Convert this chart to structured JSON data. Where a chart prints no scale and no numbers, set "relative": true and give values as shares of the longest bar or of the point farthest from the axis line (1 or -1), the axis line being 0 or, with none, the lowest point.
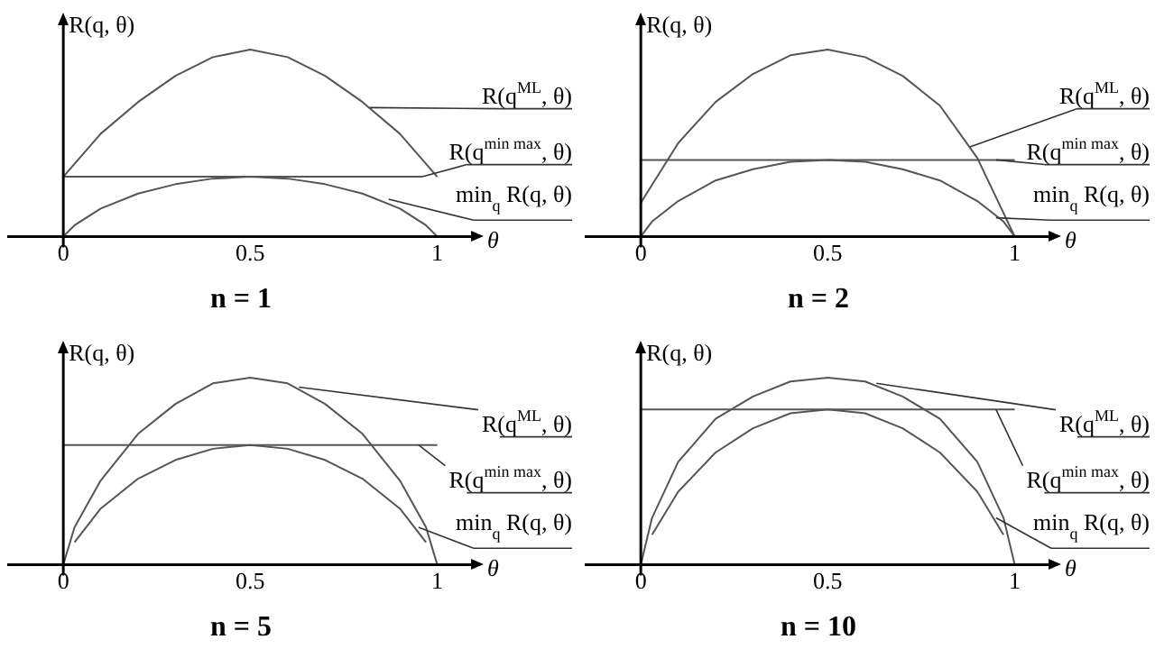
{
  "chart_data": [
    {
      "type": "line",
      "title": "n = 1",
      "xlabel": "θ",
      "ylabel": "R(q, θ)",
      "relative": true,
      "marker": "none",
      "xlim": [
        -0.15,
        1.1
      ],
      "xticks": [
        0,
        0.5,
        1
      ],
      "series": [
        {
          "color": "#555555",
          "x": [
            0,
            0.1,
            0.2,
            0.3,
            0.4,
            0.5,
            0.6,
            0.7,
            0.8,
            0.9,
            1
          ],
          "values": [
            0.32,
            0.55,
            0.72,
            0.86,
            0.96,
            1,
            0.96,
            0.86,
            0.72,
            0.55,
            0.32
          ]
        },
        {
          "color": "#555555",
          "x": [
            0,
            0.96
          ],
          "values": [
            0.32,
            0.32
          ]
        },
        {
          "color": "#555555",
          "x": [
            0,
            0.03,
            0.1,
            0.2,
            0.3,
            0.4,
            0.5,
            0.6,
            0.7,
            0.8,
            0.9,
            0.97,
            1
          ],
          "values": [
            0,
            0.06,
            0.15,
            0.23,
            0.28,
            0.31,
            0.32,
            0.31,
            0.28,
            0.23,
            0.15,
            0.06,
            0
          ]
        }
      ],
      "annotations": [
        {
          "text": "R(q$^{ML}$, θ)",
          "x": 0.82,
          "y": 0.69
        },
        {
          "text": "R(q$^{min max}$, θ)",
          "x": 0.96,
          "y": 0.32
        },
        {
          "text": "min$_{q}$ R(q, θ)",
          "x": 0.87,
          "y": 0.2
        }
      ]
    },
    {
      "type": "line",
      "title": "n = 2",
      "xlabel": "θ",
      "ylabel": "R(q, θ)",
      "relative": true,
      "marker": "none",
      "xlim": [
        -0.15,
        1.1
      ],
      "xticks": [
        0,
        0.5,
        1
      ],
      "series": [
        {
          "color": "#555555",
          "x": [
            0,
            0.1,
            0.2,
            0.3,
            0.4,
            0.5,
            0.6,
            0.7,
            0.8,
            0.9,
            1
          ],
          "values": [
            0.18,
            0.5,
            0.72,
            0.87,
            0.97,
            1,
            0.96,
            0.86,
            0.7,
            0.42,
            0
          ]
        },
        {
          "color": "#555555",
          "x": [
            0,
            1
          ],
          "values": [
            0.41,
            0.41
          ]
        },
        {
          "color": "#555555",
          "x": [
            0,
            0.03,
            0.1,
            0.2,
            0.3,
            0.4,
            0.5,
            0.6,
            0.7,
            0.8,
            0.9,
            0.97,
            1
          ],
          "values": [
            0,
            0.08,
            0.19,
            0.3,
            0.36,
            0.4,
            0.41,
            0.4,
            0.36,
            0.3,
            0.19,
            0.08,
            0
          ]
        }
      ],
      "annotations": [
        {
          "text": "R(q$^{ML}$, θ)",
          "x": 0.88,
          "y": 0.48
        },
        {
          "text": "R(q$^{min max}$, θ)",
          "x": 0.95,
          "y": 0.41
        },
        {
          "text": "min$_{q}$ R(q, θ)",
          "x": 0.95,
          "y": 0.1
        }
      ]
    },
    {
      "type": "line",
      "title": "n = 5",
      "xlabel": "θ",
      "ylabel": "R(q, θ)",
      "relative": true,
      "marker": "none",
      "xlim": [
        -0.15,
        1.1
      ],
      "xticks": [
        0,
        0.5,
        1
      ],
      "series": [
        {
          "color": "#555555",
          "x": [
            0,
            0.03,
            0.1,
            0.2,
            0.3,
            0.4,
            0.5,
            0.6,
            0.7,
            0.8,
            0.9,
            0.97,
            1
          ],
          "values": [
            0,
            0.2,
            0.45,
            0.7,
            0.86,
            0.97,
            1,
            0.97,
            0.86,
            0.7,
            0.45,
            0.2,
            0
          ]
        },
        {
          "color": "#555555",
          "x": [
            0,
            1
          ],
          "values": [
            0.64,
            0.64
          ]
        },
        {
          "color": "#555555",
          "x": [
            0.03,
            0.1,
            0.2,
            0.3,
            0.4,
            0.5,
            0.6,
            0.7,
            0.8,
            0.9,
            0.97
          ],
          "values": [
            0.12,
            0.3,
            0.46,
            0.56,
            0.62,
            0.64,
            0.62,
            0.56,
            0.46,
            0.3,
            0.12
          ]
        }
      ],
      "annotations": [
        {
          "text": "R(q$^{ML}$, θ)",
          "x": 0.63,
          "y": 0.95
        },
        {
          "text": "R(q$^{min max}$, θ)",
          "x": 0.95,
          "y": 0.64
        },
        {
          "text": "min$_{q}$ R(q, θ)",
          "x": 0.95,
          "y": 0.2
        }
      ]
    },
    {
      "type": "line",
      "title": "n = 10",
      "xlabel": "θ",
      "ylabel": "R(q, θ)",
      "relative": true,
      "marker": "none",
      "xlim": [
        -0.15,
        1.1
      ],
      "xticks": [
        0,
        0.5,
        1
      ],
      "series": [
        {
          "color": "#555555",
          "x": [
            0,
            0.03,
            0.1,
            0.2,
            0.3,
            0.4,
            0.5,
            0.6,
            0.7,
            0.8,
            0.9,
            0.97,
            1
          ],
          "values": [
            0,
            0.25,
            0.55,
            0.78,
            0.9,
            0.98,
            1,
            0.98,
            0.9,
            0.78,
            0.55,
            0.25,
            0
          ]
        },
        {
          "color": "#555555",
          "x": [
            0,
            1
          ],
          "values": [
            0.83,
            0.83
          ]
        },
        {
          "color": "#555555",
          "x": [
            0.03,
            0.1,
            0.2,
            0.3,
            0.4,
            0.5,
            0.6,
            0.7,
            0.8,
            0.9,
            0.97
          ],
          "values": [
            0.16,
            0.39,
            0.6,
            0.73,
            0.81,
            0.83,
            0.81,
            0.73,
            0.6,
            0.39,
            0.16
          ]
        }
      ],
      "annotations": [
        {
          "text": "R(q$^{ML}$, θ)",
          "x": 0.63,
          "y": 0.97
        },
        {
          "text": "R(q$^{min max}$, θ)",
          "x": 0.95,
          "y": 0.83
        },
        {
          "text": "min$_{q}$ R(q, θ)",
          "x": 0.95,
          "y": 0.25
        }
      ]
    }
  ]
}
